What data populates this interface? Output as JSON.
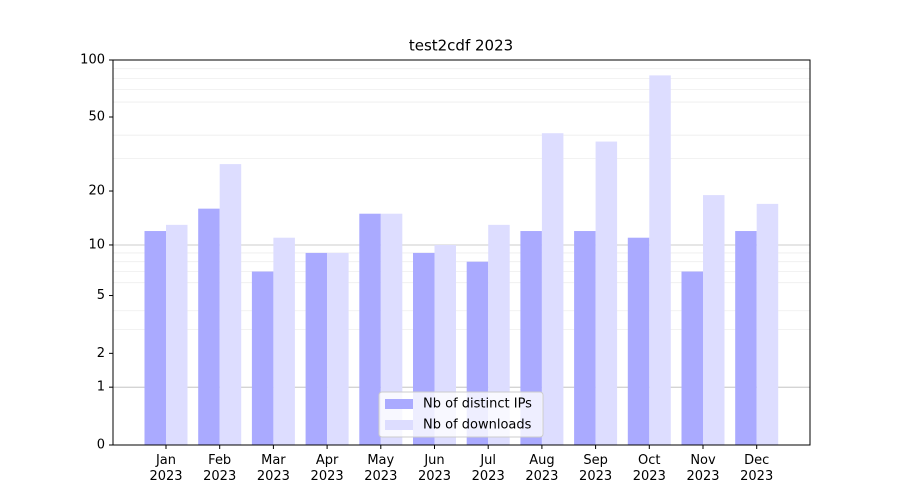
{
  "chart_data": {
    "type": "bar",
    "title": "test2cdf 2023",
    "categories": [
      "Jan\n2023",
      "Feb\n2023",
      "Mar\n2023",
      "Apr\n2023",
      "May\n2023",
      "Jun\n2023",
      "Jul\n2023",
      "Aug\n2023",
      "Sep\n2023",
      "Oct\n2023",
      "Nov\n2023",
      "Dec\n2023"
    ],
    "series": [
      {
        "name": "Nb of distinct IPs",
        "color": "#aaaaff",
        "values": [
          12,
          16,
          7,
          9,
          15,
          9,
          8,
          12,
          12,
          11,
          7,
          12
        ]
      },
      {
        "name": "Nb of downloads",
        "color": "#ddddff",
        "values": [
          13,
          28,
          11,
          9,
          15,
          10,
          13,
          41,
          37,
          83,
          19,
          17
        ]
      }
    ],
    "yscale": "log1p",
    "ylim": [
      0,
      100
    ],
    "yticks": [
      0,
      1,
      2,
      5,
      10,
      20,
      50,
      100
    ],
    "major_grid": [
      1,
      10
    ],
    "minor_grid": [
      3,
      4,
      6,
      7,
      8,
      9,
      30,
      40,
      60,
      70,
      80,
      90
    ],
    "grid": true,
    "legend": "lower center"
  }
}
